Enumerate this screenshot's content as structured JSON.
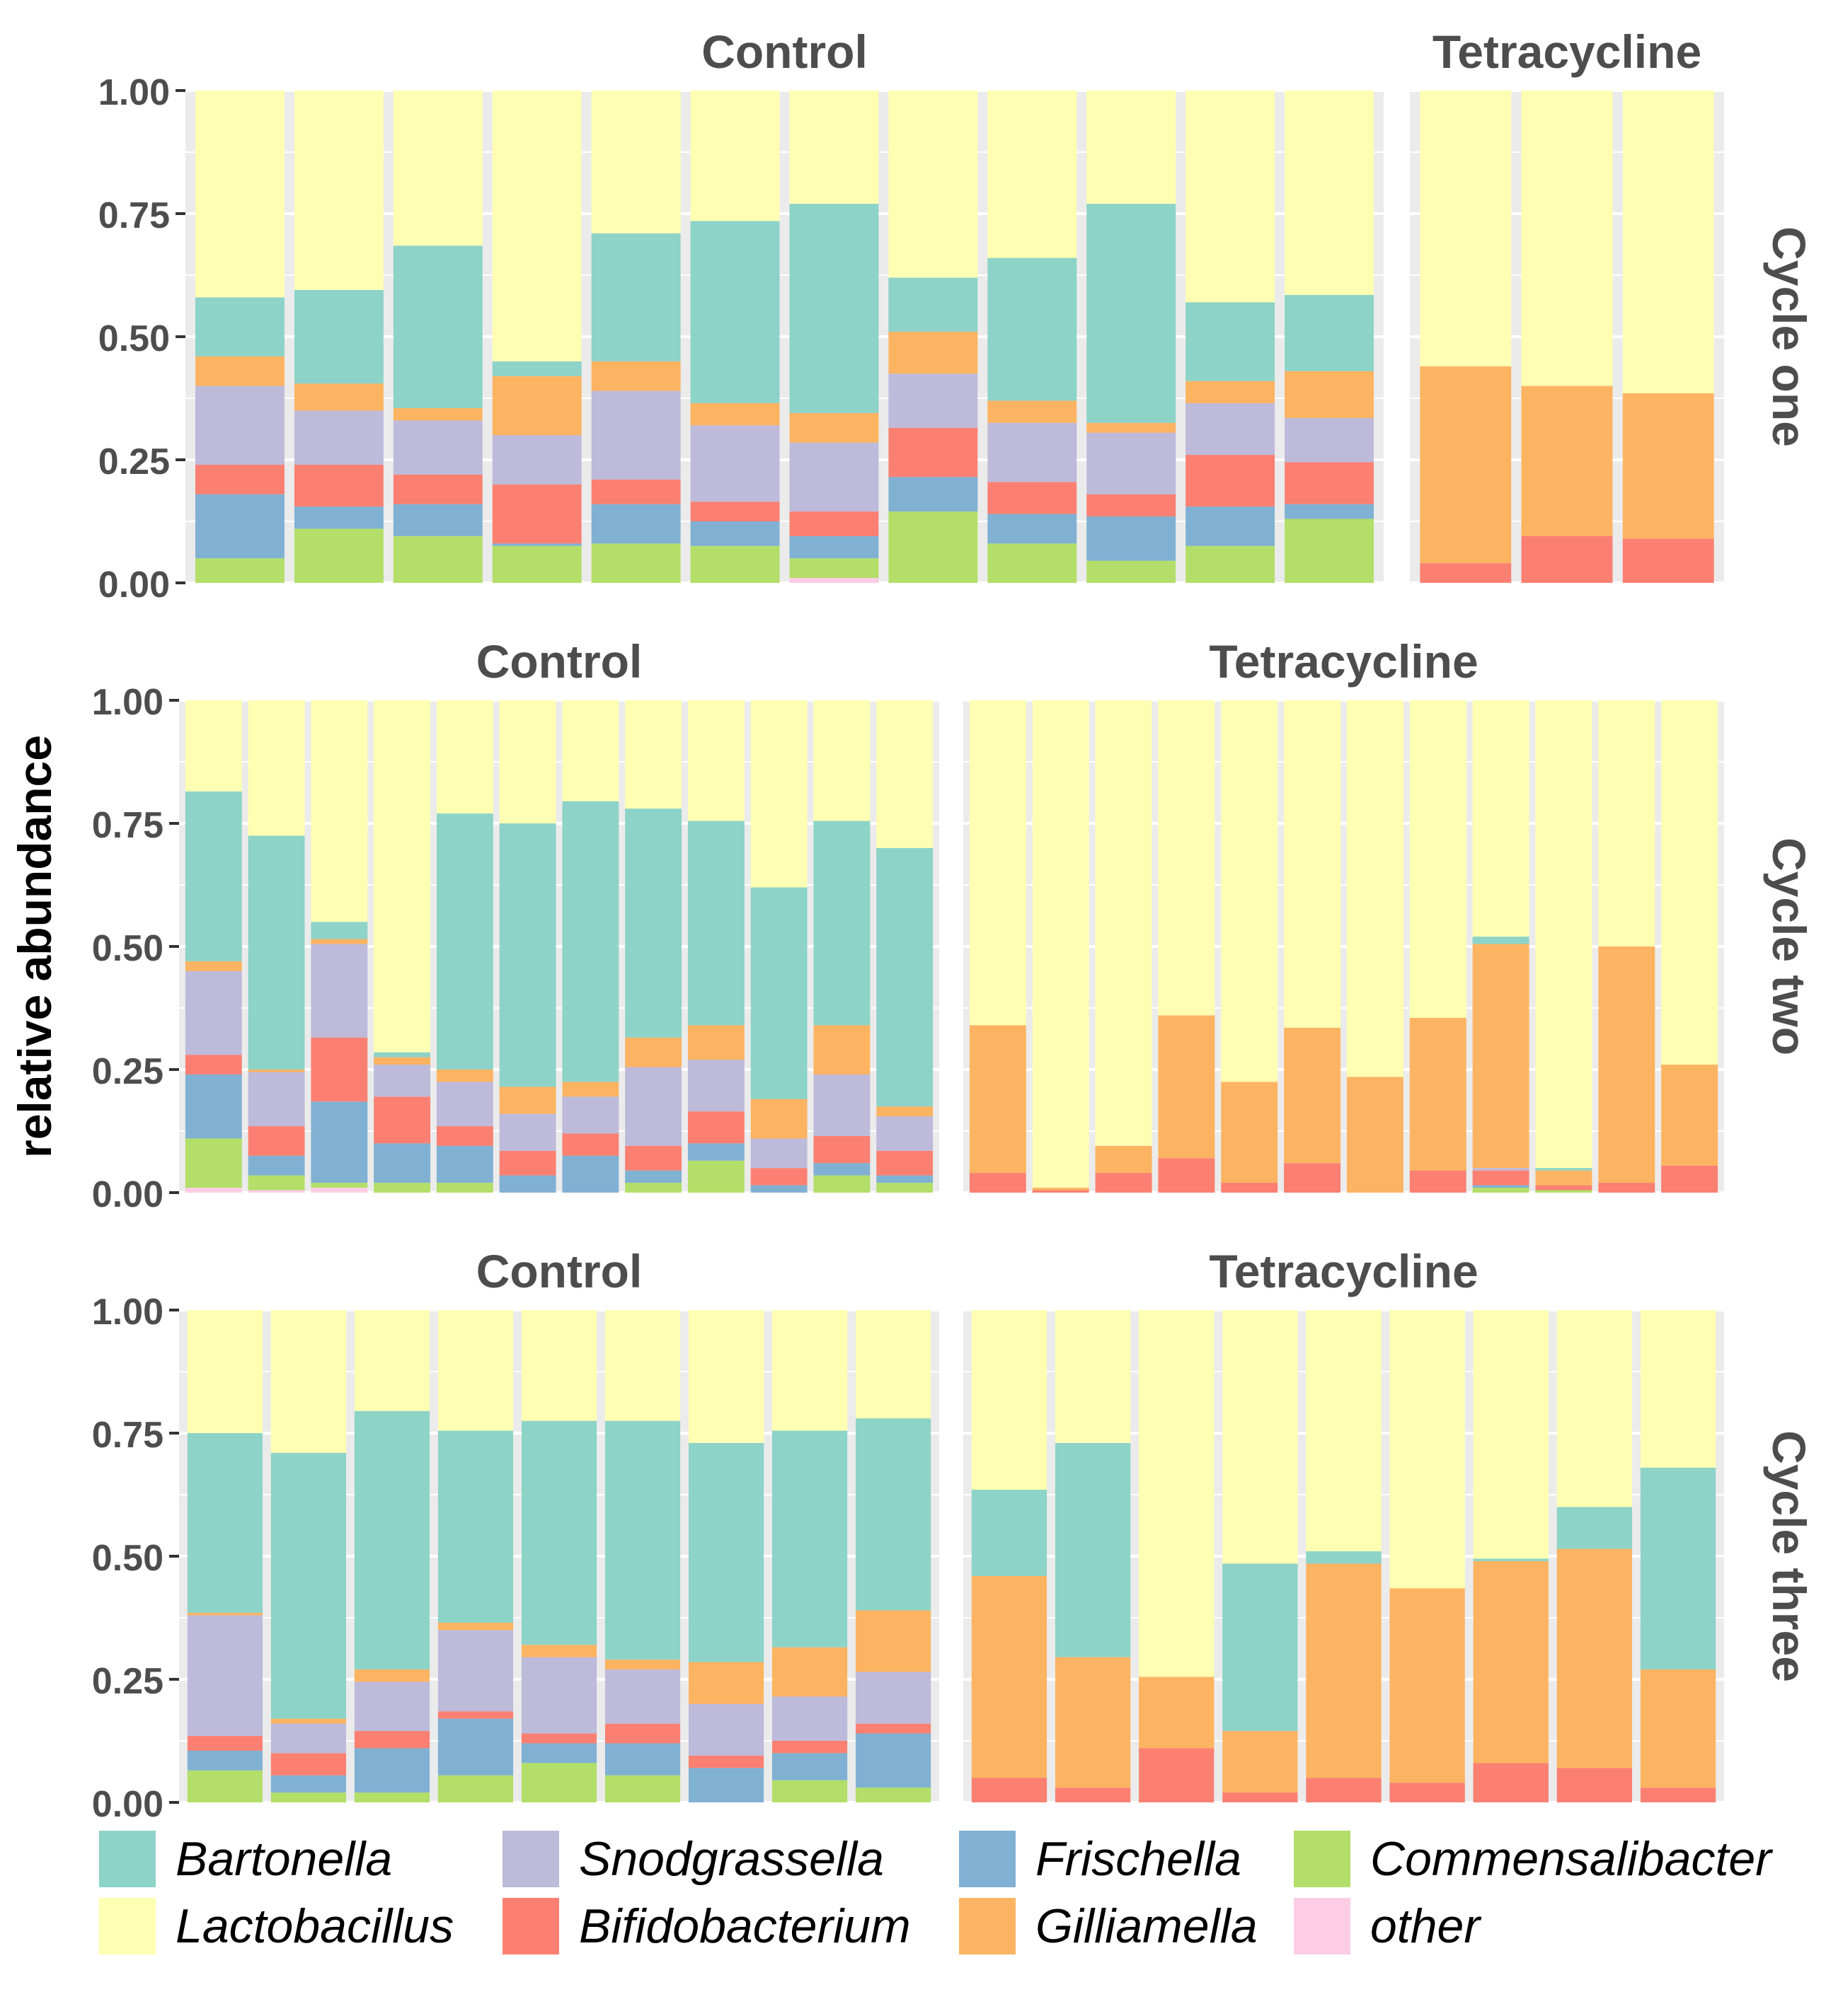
{
  "chart_data": {
    "type": "bar",
    "stacked": true,
    "ylabel": "relative abundance",
    "ylim": [
      0,
      1
    ],
    "yticks": [
      "0.00",
      "0.25",
      "0.50",
      "0.75",
      "1.00"
    ],
    "stack_order": [
      "other",
      "Commensalibacter",
      "Frischella",
      "Bifidobacterium",
      "Snodgrassella",
      "Gilliamella",
      "Bartonella",
      "Lactobacillus"
    ],
    "taxa_colors": {
      "Bartonella": "#8dd3c7",
      "Lactobacillus": "#ffffb3",
      "Snodgrassella": "#bebada",
      "Bifidobacterium": "#fb8072",
      "Frischella": "#80b1d3",
      "Gilliamella": "#fdb462",
      "Commensalibacter": "#b3de69",
      "other": "#fccde5"
    },
    "facet_columns": [
      "Control",
      "Tetracycline"
    ],
    "rows": [
      {
        "label": "Cycle one",
        "panels": [
          {
            "title": "Control",
            "bars": [
              {
                "other": 0,
                "Commensalibacter": 0.05,
                "Frischella": 0.13,
                "Bifidobacterium": 0.06,
                "Snodgrassella": 0.16,
                "Gilliamella": 0.06,
                "Bartonella": 0.12
              },
              {
                "other": 0,
                "Commensalibacter": 0.11,
                "Frischella": 0.045,
                "Bifidobacterium": 0.085,
                "Snodgrassella": 0.11,
                "Gilliamella": 0.055,
                "Bartonella": 0.19
              },
              {
                "other": 0,
                "Commensalibacter": 0.095,
                "Frischella": 0.065,
                "Bifidobacterium": 0.06,
                "Snodgrassella": 0.11,
                "Gilliamella": 0.025,
                "Bartonella": 0.33
              },
              {
                "other": 0,
                "Commensalibacter": 0.075,
                "Frischella": 0.005,
                "Bifidobacterium": 0.12,
                "Snodgrassella": 0.1,
                "Gilliamella": 0.12,
                "Bartonella": 0.03
              },
              {
                "other": 0,
                "Commensalibacter": 0.08,
                "Frischella": 0.08,
                "Bifidobacterium": 0.05,
                "Snodgrassella": 0.18,
                "Gilliamella": 0.06,
                "Bartonella": 0.26
              },
              {
                "other": 0,
                "Commensalibacter": 0.075,
                "Frischella": 0.05,
                "Bifidobacterium": 0.04,
                "Snodgrassella": 0.155,
                "Gilliamella": 0.045,
                "Bartonella": 0.37
              },
              {
                "other": 0.01,
                "Commensalibacter": 0.04,
                "Frischella": 0.045,
                "Bifidobacterium": 0.05,
                "Snodgrassella": 0.14,
                "Gilliamella": 0.06,
                "Bartonella": 0.425
              },
              {
                "other": 0,
                "Commensalibacter": 0.145,
                "Frischella": 0.07,
                "Bifidobacterium": 0.1,
                "Snodgrassella": 0.11,
                "Gilliamella": 0.085,
                "Bartonella": 0.11
              },
              {
                "other": 0,
                "Commensalibacter": 0.08,
                "Frischella": 0.06,
                "Bifidobacterium": 0.065,
                "Snodgrassella": 0.12,
                "Gilliamella": 0.045,
                "Bartonella": 0.29
              },
              {
                "other": 0,
                "Commensalibacter": 0.045,
                "Frischella": 0.09,
                "Bifidobacterium": 0.045,
                "Snodgrassella": 0.125,
                "Gilliamella": 0.02,
                "Bartonella": 0.445
              },
              {
                "other": 0,
                "Commensalibacter": 0.075,
                "Frischella": 0.08,
                "Bifidobacterium": 0.105,
                "Snodgrassella": 0.105,
                "Gilliamella": 0.045,
                "Bartonella": 0.16
              },
              {
                "other": 0,
                "Commensalibacter": 0.13,
                "Frischella": 0.03,
                "Bifidobacterium": 0.085,
                "Snodgrassella": 0.09,
                "Gilliamella": 0.095,
                "Bartonella": 0.155
              }
            ]
          },
          {
            "title": "Tetracycline",
            "bars": [
              {
                "Bifidobacterium": 0.04,
                "Gilliamella": 0.4
              },
              {
                "Bifidobacterium": 0.095,
                "Gilliamella": 0.305
              },
              {
                "Bifidobacterium": 0.09,
                "Gilliamella": 0.295
              }
            ]
          }
        ]
      },
      {
        "label": "Cycle two",
        "panels": [
          {
            "title": "Control",
            "bars": [
              {
                "other": 0.01,
                "Commensalibacter": 0.1,
                "Frischella": 0.13,
                "Bifidobacterium": 0.04,
                "Snodgrassella": 0.17,
                "Gilliamella": 0.02,
                "Bartonella": 0.345
              },
              {
                "other": 0.005,
                "Commensalibacter": 0.03,
                "Frischella": 0.04,
                "Bifidobacterium": 0.06,
                "Snodgrassella": 0.11,
                "Gilliamella": 0.005,
                "Bartonella": 0.475
              },
              {
                "other": 0.01,
                "Commensalibacter": 0.01,
                "Frischella": 0.165,
                "Bifidobacterium": 0.13,
                "Snodgrassella": 0.19,
                "Gilliamella": 0.01,
                "Bartonella": 0.035
              },
              {
                "other": 0,
                "Commensalibacter": 0.02,
                "Frischella": 0.08,
                "Bifidobacterium": 0.095,
                "Snodgrassella": 0.065,
                "Gilliamella": 0.015,
                "Bartonella": 0.01
              },
              {
                "other": 0,
                "Commensalibacter": 0.02,
                "Frischella": 0.075,
                "Bifidobacterium": 0.04,
                "Snodgrassella": 0.09,
                "Gilliamella": 0.025,
                "Bartonella": 0.52
              },
              {
                "other": 0,
                "Commensalibacter": 0,
                "Frischella": 0.035,
                "Bifidobacterium": 0.05,
                "Snodgrassella": 0.075,
                "Gilliamella": 0.055,
                "Bartonella": 0.535
              },
              {
                "other": 0,
                "Commensalibacter": 0,
                "Frischella": 0.075,
                "Bifidobacterium": 0.045,
                "Snodgrassella": 0.075,
                "Gilliamella": 0.03,
                "Bartonella": 0.57
              },
              {
                "other": 0,
                "Commensalibacter": 0.02,
                "Frischella": 0.025,
                "Bifidobacterium": 0.05,
                "Snodgrassella": 0.16,
                "Gilliamella": 0.06,
                "Bartonella": 0.465
              },
              {
                "other": 0,
                "Commensalibacter": 0.065,
                "Frischella": 0.035,
                "Bifidobacterium": 0.065,
                "Snodgrassella": 0.105,
                "Gilliamella": 0.07,
                "Bartonella": 0.415
              },
              {
                "other": 0,
                "Commensalibacter": 0,
                "Frischella": 0.015,
                "Bifidobacterium": 0.035,
                "Snodgrassella": 0.06,
                "Gilliamella": 0.08,
                "Bartonella": 0.43
              },
              {
                "other": 0,
                "Commensalibacter": 0.035,
                "Frischella": 0.025,
                "Bifidobacterium": 0.055,
                "Snodgrassella": 0.125,
                "Gilliamella": 0.1,
                "Bartonella": 0.415
              },
              {
                "other": 0,
                "Commensalibacter": 0.02,
                "Frischella": 0.015,
                "Bifidobacterium": 0.05,
                "Snodgrassella": 0.07,
                "Gilliamella": 0.02,
                "Bartonella": 0.525
              }
            ]
          },
          {
            "title": "Tetracycline",
            "bars": [
              {
                "Bifidobacterium": 0.04,
                "Gilliamella": 0.3
              },
              {
                "Bifidobacterium": 0.005,
                "Gilliamella": 0.005
              },
              {
                "Bifidobacterium": 0.04,
                "Gilliamella": 0.055
              },
              {
                "Bifidobacterium": 0.07,
                "Gilliamella": 0.29
              },
              {
                "Bifidobacterium": 0.02,
                "Gilliamella": 0.205
              },
              {
                "Bifidobacterium": 0.06,
                "Gilliamella": 0.275
              },
              {
                "Bifidobacterium": 0,
                "Gilliamella": 0.235
              },
              {
                "Bifidobacterium": 0.045,
                "Gilliamella": 0.31
              },
              {
                "Commensalibacter": 0.01,
                "Frischella": 0.005,
                "Bifidobacterium": 0.03,
                "Snodgrassella": 0.005,
                "Gilliamella": 0.455,
                "Bartonella": 0.015
              },
              {
                "Commensalibacter": 0.005,
                "Bifidobacterium": 0.01,
                "Gilliamella": 0.03,
                "Bartonella": 0.005
              },
              {
                "Bifidobacterium": 0.02,
                "Gilliamella": 0.48
              },
              {
                "Bifidobacterium": 0.055,
                "Gilliamella": 0.205
              }
            ]
          }
        ]
      },
      {
        "label": "Cycle three",
        "panels": [
          {
            "title": "Control",
            "bars": [
              {
                "other": 0,
                "Commensalibacter": 0.065,
                "Frischella": 0.04,
                "Bifidobacterium": 0.03,
                "Snodgrassella": 0.245,
                "Gilliamella": 0.005,
                "Bartonella": 0.365
              },
              {
                "other": 0,
                "Commensalibacter": 0.02,
                "Frischella": 0.035,
                "Bifidobacterium": 0.045,
                "Snodgrassella": 0.06,
                "Gilliamella": 0.01,
                "Bartonella": 0.54
              },
              {
                "other": 0,
                "Commensalibacter": 0.02,
                "Frischella": 0.09,
                "Bifidobacterium": 0.035,
                "Snodgrassella": 0.1,
                "Gilliamella": 0.025,
                "Bartonella": 0.525
              },
              {
                "other": 0,
                "Commensalibacter": 0.055,
                "Frischella": 0.115,
                "Bifidobacterium": 0.015,
                "Snodgrassella": 0.165,
                "Gilliamella": 0.015,
                "Bartonella": 0.39
              },
              {
                "other": 0,
                "Commensalibacter": 0.08,
                "Frischella": 0.04,
                "Bifidobacterium": 0.02,
                "Snodgrassella": 0.155,
                "Gilliamella": 0.025,
                "Bartonella": 0.455
              },
              {
                "other": 0,
                "Commensalibacter": 0.055,
                "Frischella": 0.065,
                "Bifidobacterium": 0.04,
                "Snodgrassella": 0.11,
                "Gilliamella": 0.02,
                "Bartonella": 0.485
              },
              {
                "other": 0,
                "Commensalibacter": 0,
                "Frischella": 0.07,
                "Bifidobacterium": 0.025,
                "Snodgrassella": 0.105,
                "Gilliamella": 0.085,
                "Bartonella": 0.445
              },
              {
                "other": 0,
                "Commensalibacter": 0.045,
                "Frischella": 0.055,
                "Bifidobacterium": 0.025,
                "Snodgrassella": 0.09,
                "Gilliamella": 0.1,
                "Bartonella": 0.44
              },
              {
                "other": 0,
                "Commensalibacter": 0.03,
                "Frischella": 0.11,
                "Bifidobacterium": 0.02,
                "Snodgrassella": 0.105,
                "Gilliamella": 0.125,
                "Bartonella": 0.39
              }
            ]
          },
          {
            "title": "Tetracycline",
            "bars": [
              {
                "Bifidobacterium": 0.05,
                "Gilliamella": 0.41,
                "Bartonella": 0.175
              },
              {
                "Bifidobacterium": 0.03,
                "Gilliamella": 0.265,
                "Bartonella": 0.435
              },
              {
                "Bifidobacterium": 0.11,
                "Gilliamella": 0.145
              },
              {
                "Bifidobacterium": 0.02,
                "Gilliamella": 0.125,
                "Bartonella": 0.34
              },
              {
                "Bifidobacterium": 0.05,
                "Gilliamella": 0.435,
                "Bartonella": 0.025
              },
              {
                "Bifidobacterium": 0.04,
                "Gilliamella": 0.395
              },
              {
                "Bifidobacterium": 0.08,
                "Gilliamella": 0.41,
                "Bartonella": 0.005
              },
              {
                "Bifidobacterium": 0.07,
                "Gilliamella": 0.445,
                "Bartonella": 0.085
              },
              {
                "Bifidobacterium": 0.03,
                "Gilliamella": 0.24,
                "Bartonella": 0.41
              }
            ]
          }
        ]
      }
    ],
    "legend": [
      {
        "name": "Bartonella",
        "color": "#8dd3c7"
      },
      {
        "name": "Lactobacillus",
        "color": "#ffffb3"
      },
      {
        "name": "Snodgrassella",
        "color": "#bebada"
      },
      {
        "name": "Bifidobacterium",
        "color": "#fb8072"
      },
      {
        "name": "Frischella",
        "color": "#80b1d3"
      },
      {
        "name": "Gilliamella",
        "color": "#fdb462"
      },
      {
        "name": "Commensalibacter",
        "color": "#b3de69"
      },
      {
        "name": "other",
        "color": "#fccde5"
      }
    ],
    "legend_position": "bottom",
    "panel_background": "#ebebeb",
    "grid": true
  }
}
